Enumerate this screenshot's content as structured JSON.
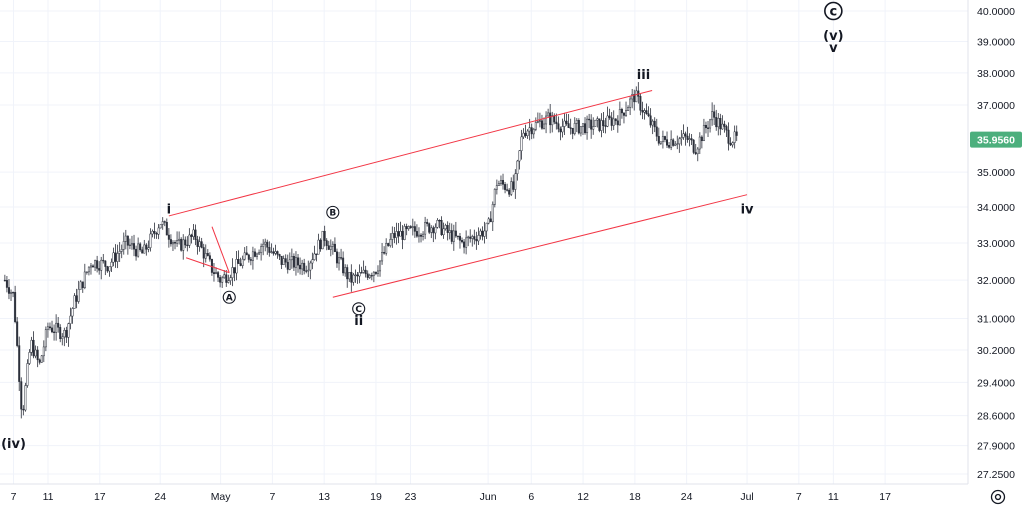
{
  "colors": {
    "background": "#ffffff",
    "grid": "#f0f3fa",
    "candle": "#2a2e39",
    "channel": "#f23645",
    "price_tag": "#4caf7d",
    "axis_text": "#131722"
  },
  "price_axis": {
    "ticks": [
      "40.0000",
      "39.0000",
      "38.0000",
      "37.0000",
      "35.0000",
      "34.0000",
      "33.0000",
      "32.0000",
      "31.0000",
      "30.2000",
      "29.4000",
      "28.6000",
      "27.9000",
      "27.2500"
    ],
    "current_price": "35.9560"
  },
  "time_axis": {
    "ticks": [
      "7",
      "11",
      "17",
      "24",
      "May",
      "7",
      "13",
      "19",
      "23",
      "Jun",
      "6",
      "12",
      "18",
      "24",
      "Jul",
      "7",
      "11",
      "17"
    ]
  },
  "settings_icon": "gear-icon",
  "wave_labels": {
    "iv_paren": "(iv)",
    "i": "i",
    "A": "A",
    "B": "B",
    "C": "C",
    "ii": "ii",
    "iii": "iii",
    "iv": "iv",
    "c_circle": "c",
    "v_paren": "(v)",
    "v": "v"
  },
  "chart_data": {
    "type": "candlestick",
    "price_scale": "log",
    "ylim": [
      27.0,
      40.4
    ],
    "x_range": [
      "Apr 7",
      "Jul 20"
    ],
    "current_price": 35.956,
    "waypoints": [
      {
        "date": "Apr 6",
        "price": 32.0
      },
      {
        "date": "Apr 7",
        "price": 31.6
      },
      {
        "date": "Apr 8",
        "price": 28.6
      },
      {
        "date": "Apr 9",
        "price": 30.4
      },
      {
        "date": "Apr 10",
        "price": 29.8
      },
      {
        "date": "Apr 11",
        "price": 30.8
      },
      {
        "date": "Apr 13",
        "price": 30.6
      },
      {
        "date": "Apr 14",
        "price": 31.4
      },
      {
        "date": "Apr 16",
        "price": 32.5
      },
      {
        "date": "Apr 18",
        "price": 32.4
      },
      {
        "date": "Apr 20",
        "price": 33.0
      },
      {
        "date": "Apr 22",
        "price": 32.7
      },
      {
        "date": "Apr 24",
        "price": 33.6
      },
      {
        "date": "Apr 26",
        "price": 32.9
      },
      {
        "date": "Apr 28",
        "price": 33.2
      },
      {
        "date": "Apr 30",
        "price": 32.3
      },
      {
        "date": "May 1",
        "price": 32.0
      },
      {
        "date": "May 4",
        "price": 32.6
      },
      {
        "date": "May 6",
        "price": 33.0
      },
      {
        "date": "May 8",
        "price": 32.5
      },
      {
        "date": "May 11",
        "price": 32.4
      },
      {
        "date": "May 13",
        "price": 33.2
      },
      {
        "date": "May 16",
        "price": 32.0
      },
      {
        "date": "May 19",
        "price": 32.3
      },
      {
        "date": "May 21",
        "price": 33.2
      },
      {
        "date": "May 23",
        "price": 33.3
      },
      {
        "date": "May 26",
        "price": 33.5
      },
      {
        "date": "May 29",
        "price": 33.0
      },
      {
        "date": "Jun 1",
        "price": 33.4
      },
      {
        "date": "Jun 2",
        "price": 34.7
      },
      {
        "date": "Jun 4",
        "price": 34.5
      },
      {
        "date": "Jun 5",
        "price": 36.2
      },
      {
        "date": "Jun 8",
        "price": 36.6
      },
      {
        "date": "Jun 10",
        "price": 36.3
      },
      {
        "date": "Jun 14",
        "price": 36.4
      },
      {
        "date": "Jun 16",
        "price": 36.6
      },
      {
        "date": "Jun 18",
        "price": 37.3
      },
      {
        "date": "Jun 21",
        "price": 35.9
      },
      {
        "date": "Jun 24",
        "price": 36.0
      },
      {
        "date": "Jun 25",
        "price": 35.7
      },
      {
        "date": "Jun 27",
        "price": 36.7
      },
      {
        "date": "Jun 29",
        "price": 36.0
      },
      {
        "date": "Jun 30",
        "price": 35.96
      }
    ],
    "channel_lines": [
      {
        "name": "upper",
        "from": {
          "date": "Apr 25",
          "price": 33.75
        },
        "to": {
          "date": "Jun 20",
          "price": 37.45
        }
      },
      {
        "name": "lower",
        "from": {
          "date": "May 14",
          "price": 31.55
        },
        "to": {
          "date": "Jul 1",
          "price": 34.35
        }
      },
      {
        "name": "wave-a-top",
        "from": {
          "date": "Apr 30",
          "price": 33.45
        },
        "to": {
          "date": "May 2",
          "price": 32.2
        }
      },
      {
        "name": "wave-a-bottom",
        "from": {
          "date": "Apr 27",
          "price": 32.6
        },
        "to": {
          "date": "May 2",
          "price": 32.2
        }
      }
    ],
    "wave_annotations": [
      {
        "label": "(iv)",
        "date": "Apr 7",
        "price": 27.95
      },
      {
        "label": "i",
        "date": "Apr 25",
        "price": 33.95
      },
      {
        "label": "A",
        "date": "May 2",
        "price": 31.55,
        "circled": true
      },
      {
        "label": "B",
        "date": "May 14",
        "price": 33.85,
        "circled": true
      },
      {
        "label": "C",
        "date": "May 17",
        "price": 31.25,
        "circled": true
      },
      {
        "label": "ii",
        "date": "May 17",
        "price": 30.95
      },
      {
        "label": "iii",
        "date": "Jun 19",
        "price": 37.95
      },
      {
        "label": "iv",
        "date": "Jul 1",
        "price": 33.95
      },
      {
        "label": "c",
        "date": "Jul 11",
        "price": 40.0,
        "circled": true
      },
      {
        "label": "(v)",
        "date": "Jul 11",
        "price": 39.2
      },
      {
        "label": "v",
        "date": "Jul 11",
        "price": 38.8
      }
    ]
  }
}
